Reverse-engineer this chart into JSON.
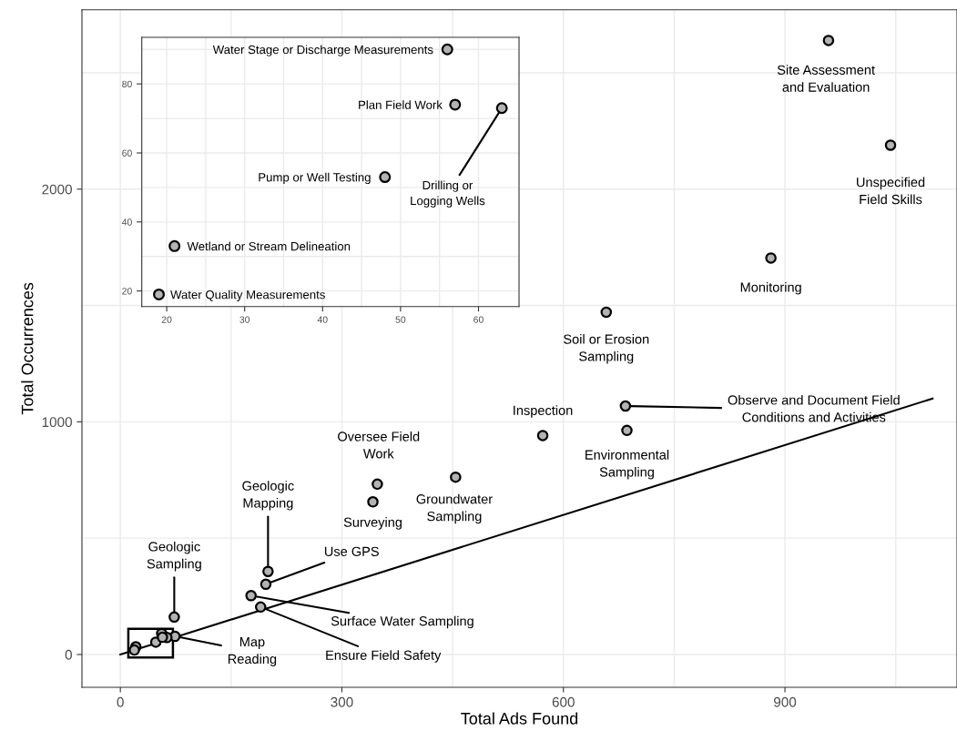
{
  "chart_data": [
    {
      "type": "scatter",
      "xlabel": "Total Ads Found",
      "ylabel": "Total Occurrences",
      "series": [
        {
          "color": "#b3b3b3",
          "x": [
            959,
            1043,
            881,
            658,
            684,
            686,
            572,
            454,
            348,
            342,
            200,
            197,
            177,
            190,
            73,
            74,
            56,
            63,
            48,
            21,
            19,
            57
          ],
          "values": [
            2639,
            2189,
            1704,
            1471,
            1068,
            963,
            941,
            762,
            732,
            656,
            357,
            302,
            253,
            204,
            161,
            78,
            90,
            73,
            53,
            33,
            19,
            74
          ]
        },
        {
          "type": "line",
          "marker": "none",
          "color": "#000000",
          "x": [
            0,
            1100
          ],
          "values": [
            0,
            1100
          ]
        }
      ],
      "xlim": [
        -52,
        1133
      ],
      "ylim": [
        -141,
        2771
      ],
      "xticks": [
        0,
        {
          "value": 150,
          "label": null
        },
        300,
        {
          "value": 450,
          "label": null
        },
        600,
        {
          "value": 750,
          "label": null
        },
        900,
        {
          "value": 1050,
          "label": null
        }
      ],
      "yticks": [
        0,
        {
          "value": 500,
          "label": null
        },
        1000,
        {
          "value": 1500,
          "label": null
        },
        2000,
        {
          "value": 2500,
          "label": null
        }
      ],
      "grid": true,
      "marker": "circle",
      "annotations": [
        {
          "text": "Site Assessment\nand Evaluation",
          "x": 959,
          "y": 2639
        },
        {
          "text": "Unspecified\nField Skills",
          "x": 1043,
          "y": 2189
        },
        {
          "text": "Monitoring",
          "x": 881,
          "y": 1704
        },
        {
          "text": "Soil or Erosion\nSampling",
          "x": 658,
          "y": 1471
        },
        {
          "text": "Observe and Document Field\nConditions and Activities",
          "x": 684,
          "y": 1068
        },
        {
          "text": "Environmental\nSampling",
          "x": 686,
          "y": 963
        },
        {
          "text": "Inspection",
          "x": 572,
          "y": 941
        },
        {
          "text": "Groundwater\nSampling",
          "x": 454,
          "y": 762
        },
        {
          "text": "Oversee Field\nWork",
          "x": 348,
          "y": 732
        },
        {
          "text": "Surveying",
          "x": 342,
          "y": 656
        },
        {
          "text": "Geologic\nMapping",
          "x": 200,
          "y": 357
        },
        {
          "text": "Use GPS",
          "x": 197,
          "y": 302
        },
        {
          "text": "Surface Water Sampling",
          "x": 177,
          "y": 253
        },
        {
          "text": "Ensure Field Safety",
          "x": 190,
          "y": 204
        },
        {
          "text": "Geologic\nSampling",
          "x": 73,
          "y": 161
        },
        {
          "text": "Map\nReading",
          "x": 74,
          "y": 78
        }
      ]
    },
    {
      "type": "scatter",
      "series": [
        {
          "color": "#b3b3b3",
          "x": [
            56,
            57,
            63,
            48,
            21,
            19
          ],
          "values": [
            90,
            74,
            73,
            53,
            33,
            19
          ]
        }
      ],
      "xlim": [
        16.8,
        65.2
      ],
      "ylim": [
        15.5,
        93.5
      ],
      "xticks": [
        20,
        {
          "value": 25,
          "label": null
        },
        30,
        {
          "value": 35,
          "label": null
        },
        40,
        {
          "value": 45,
          "label": null
        },
        50,
        {
          "value": 55,
          "label": null
        },
        60
      ],
      "yticks": [
        20,
        {
          "value": 30,
          "label": null
        },
        40,
        {
          "value": 50,
          "label": null
        },
        60,
        {
          "value": 70,
          "label": null
        },
        80,
        {
          "value": 90,
          "label": null
        }
      ],
      "grid": true,
      "marker": "circle",
      "annotations": [
        {
          "text": "Water Stage or Discharge Measurements",
          "x": 56,
          "y": 90
        },
        {
          "text": "Plan Field Work",
          "x": 57,
          "y": 74
        },
        {
          "text": "Drilling or\nLogging Wells",
          "x": 63,
          "y": 73
        },
        {
          "text": "Pump or Well Testing",
          "x": 48,
          "y": 53
        },
        {
          "text": "Wetland or Stream Delineation",
          "x": 21,
          "y": 33
        },
        {
          "text": "Water Quality Measurements",
          "x": 19,
          "y": 19
        }
      ]
    }
  ]
}
